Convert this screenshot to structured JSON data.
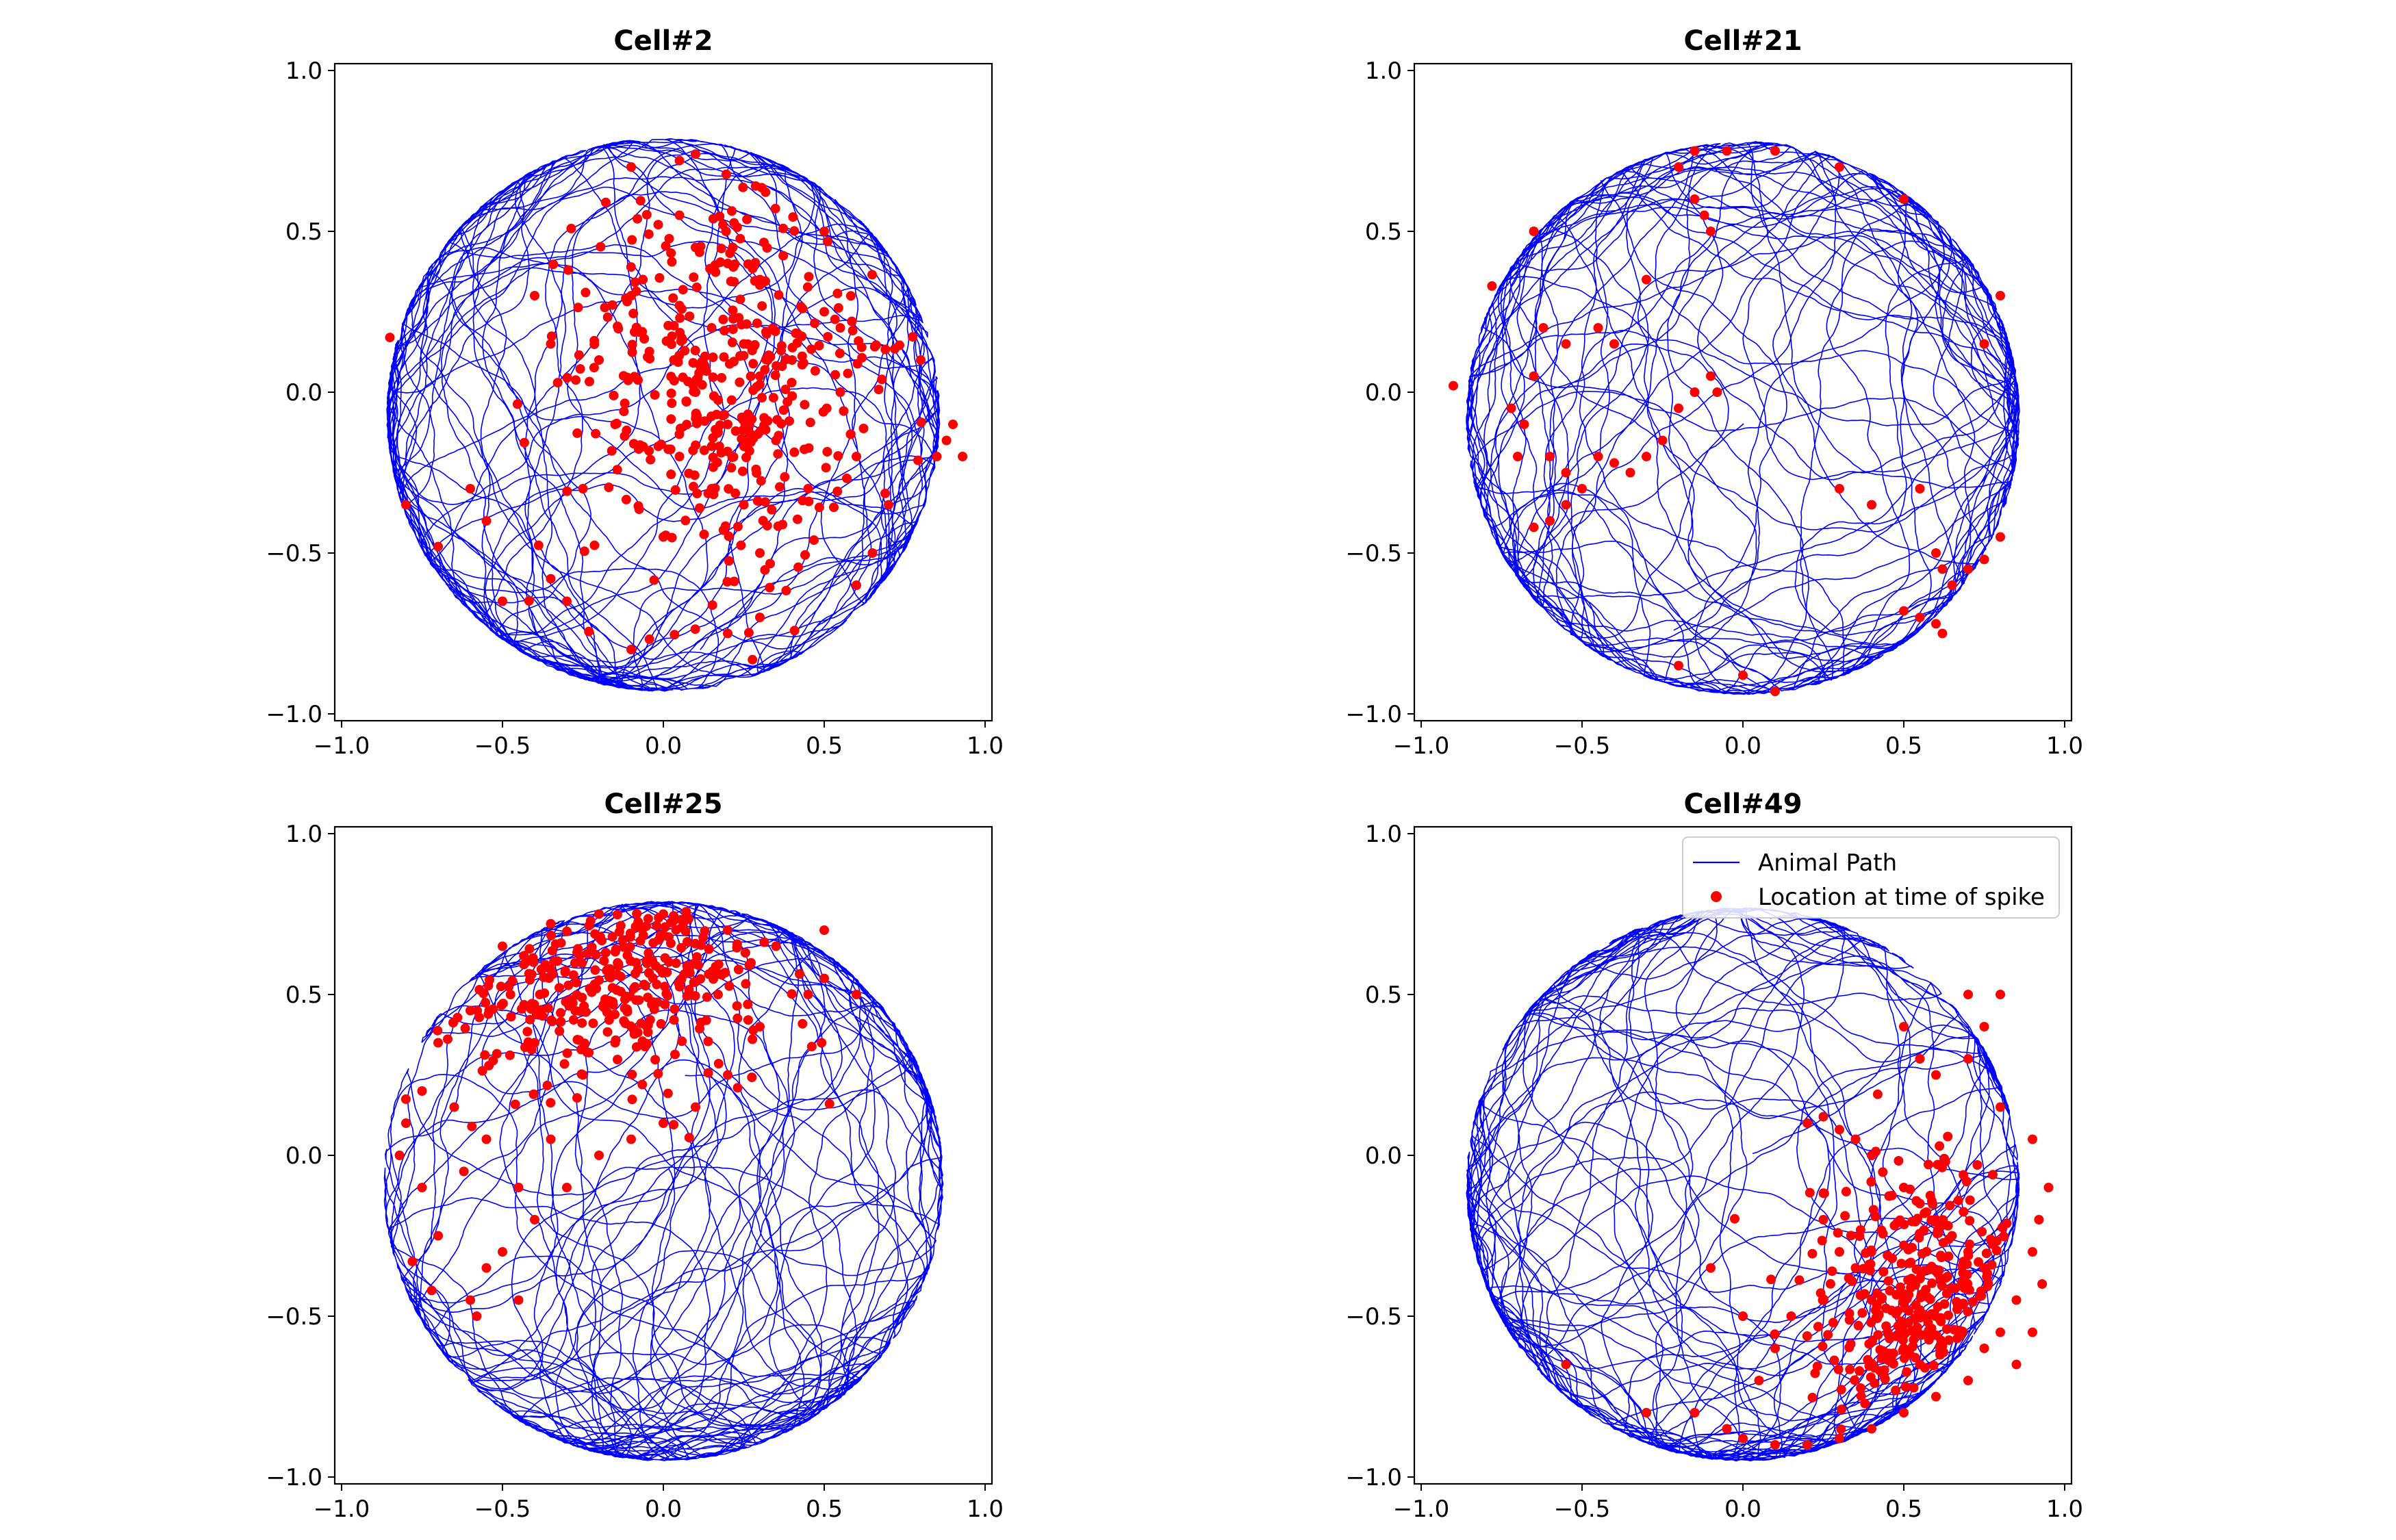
{
  "colors": {
    "path": "#0000ff",
    "spike": "#ff0000",
    "axes": "#000000",
    "background": "#ffffff"
  },
  "legend": {
    "location": "upper right",
    "entries": [
      {
        "label": "Animal Path",
        "marker": "line",
        "color": "#0000ff"
      },
      {
        "label": "Location at time of spike",
        "marker": "dot",
        "color": "#ff0000"
      }
    ]
  },
  "chart_data": [
    {
      "type": "scatter",
      "title": "Cell#2",
      "xlabel": "",
      "ylabel": "",
      "xlim": [
        -1.0,
        1.0
      ],
      "ylim": [
        -1.0,
        1.0
      ],
      "xticks": [
        "-1.0",
        "-0.5",
        "0.0",
        "0.5",
        "1.0"
      ],
      "yticks": [
        "-1.0",
        "-0.5",
        "0.0",
        "0.5",
        "1.0"
      ],
      "grid": false,
      "series": [
        {
          "name": "Animal Path",
          "kind": "line",
          "color": "#0000ff",
          "arena": {
            "cx": 0.0,
            "cy": -0.07,
            "r": 0.86
          }
        },
        {
          "name": "Location at time of spike",
          "kind": "points",
          "color": "#ff0000",
          "field": {
            "cx": 0.18,
            "cy": 0.02,
            "sx": 0.24,
            "sy": 0.3
          },
          "points": [
            [
              0.05,
              0.55
            ],
            [
              0.1,
              0.45
            ],
            [
              0.2,
              0.4
            ],
            [
              0.3,
              0.35
            ],
            [
              0.15,
              0.2
            ],
            [
              0.25,
              0.15
            ],
            [
              0.3,
              0.05
            ],
            [
              0.1,
              0.0
            ],
            [
              0.2,
              -0.1
            ],
            [
              0.35,
              -0.15
            ],
            [
              0.4,
              0.1
            ],
            [
              0.05,
              -0.2
            ],
            [
              0.15,
              -0.3
            ],
            [
              0.25,
              -0.35
            ],
            [
              0.0,
              -0.45
            ],
            [
              0.3,
              -0.5
            ],
            [
              0.45,
              -0.3
            ],
            [
              0.5,
              0.25
            ],
            [
              0.55,
              0.0
            ],
            [
              0.6,
              -0.2
            ],
            [
              -0.1,
              0.3
            ],
            [
              -0.2,
              0.1
            ],
            [
              -0.15,
              -0.1
            ],
            [
              -0.25,
              -0.3
            ],
            [
              0.7,
              -0.35
            ],
            [
              0.85,
              -0.2
            ],
            [
              0.9,
              -0.1
            ],
            [
              -0.85,
              0.17
            ],
            [
              -0.8,
              -0.35
            ],
            [
              -0.7,
              -0.48
            ],
            [
              -0.6,
              -0.3
            ],
            [
              -0.5,
              -0.65
            ],
            [
              -0.35,
              -0.58
            ],
            [
              -0.3,
              -0.65
            ],
            [
              0.05,
              0.72
            ],
            [
              0.1,
              0.74
            ],
            [
              -0.1,
              0.7
            ],
            [
              0.5,
              0.5
            ],
            [
              0.55,
              0.2
            ],
            [
              -0.35,
              0.15
            ],
            [
              0.65,
              -0.5
            ],
            [
              0.6,
              -0.6
            ],
            [
              0.3,
              -0.7
            ],
            [
              0.2,
              -0.75
            ],
            [
              -0.1,
              -0.8
            ],
            [
              -0.4,
              0.3
            ],
            [
              -0.55,
              -0.4
            ],
            [
              0.8,
              0.1
            ],
            [
              0.88,
              -0.15
            ],
            [
              0.93,
              -0.2
            ]
          ]
        }
      ]
    },
    {
      "type": "scatter",
      "title": "Cell#21",
      "xlabel": "",
      "ylabel": "",
      "xlim": [
        -1.0,
        1.0
      ],
      "ylim": [
        -1.0,
        1.0
      ],
      "xticks": [
        "-1.0",
        "-0.5",
        "0.0",
        "0.5",
        "1.0"
      ],
      "yticks": [
        "-1.0",
        "-0.5",
        "0.0",
        "0.5",
        "1.0"
      ],
      "grid": false,
      "series": [
        {
          "name": "Animal Path",
          "kind": "line",
          "color": "#0000ff",
          "arena": {
            "cx": 0.0,
            "cy": -0.08,
            "r": 0.86
          }
        },
        {
          "name": "Location at time of spike",
          "kind": "points",
          "color": "#ff0000",
          "points": [
            [
              -0.65,
              0.05
            ],
            [
              -0.68,
              -0.1
            ],
            [
              -0.6,
              -0.2
            ],
            [
              -0.55,
              -0.25
            ],
            [
              -0.45,
              -0.2
            ],
            [
              -0.4,
              -0.22
            ],
            [
              -0.35,
              -0.25
            ],
            [
              -0.3,
              -0.2
            ],
            [
              -0.25,
              -0.15
            ],
            [
              -0.2,
              -0.05
            ],
            [
              -0.15,
              0.0
            ],
            [
              -0.1,
              0.05
            ],
            [
              -0.08,
              0.0
            ],
            [
              -0.5,
              -0.3
            ],
            [
              -0.55,
              -0.35
            ],
            [
              -0.6,
              -0.4
            ],
            [
              -0.65,
              -0.42
            ],
            [
              -0.7,
              -0.2
            ],
            [
              -0.72,
              -0.05
            ],
            [
              -0.62,
              0.2
            ],
            [
              -0.55,
              0.15
            ],
            [
              -0.45,
              0.2
            ],
            [
              -0.4,
              0.15
            ],
            [
              -0.3,
              0.35
            ],
            [
              -0.15,
              0.6
            ],
            [
              -0.12,
              0.55
            ],
            [
              -0.1,
              0.5
            ],
            [
              -0.2,
              0.7
            ],
            [
              -0.15,
              0.75
            ],
            [
              -0.05,
              0.75
            ],
            [
              0.1,
              0.75
            ],
            [
              0.3,
              0.7
            ],
            [
              0.5,
              0.6
            ],
            [
              -0.65,
              0.5
            ],
            [
              -0.78,
              0.33
            ],
            [
              -0.9,
              0.02
            ],
            [
              0.55,
              -0.3
            ],
            [
              0.6,
              -0.5
            ],
            [
              0.62,
              -0.55
            ],
            [
              0.65,
              -0.6
            ],
            [
              0.7,
              -0.55
            ],
            [
              0.75,
              -0.52
            ],
            [
              0.8,
              -0.45
            ],
            [
              0.55,
              -0.7
            ],
            [
              0.6,
              -0.72
            ],
            [
              0.62,
              -0.75
            ],
            [
              0.5,
              -0.68
            ],
            [
              0.0,
              -0.88
            ],
            [
              0.1,
              -0.93
            ],
            [
              -0.2,
              -0.85
            ],
            [
              0.8,
              0.3
            ],
            [
              0.75,
              0.15
            ],
            [
              0.4,
              -0.35
            ],
            [
              0.3,
              -0.3
            ]
          ]
        }
      ]
    },
    {
      "type": "scatter",
      "title": "Cell#25",
      "xlabel": "",
      "ylabel": "",
      "xlim": [
        -1.0,
        1.0
      ],
      "ylim": [
        -1.0,
        1.0
      ],
      "xticks": [
        "-1.0",
        "-0.5",
        "0.0",
        "0.5",
        "1.0"
      ],
      "yticks": [
        "-1.0",
        "-0.5",
        "0.0",
        "0.5",
        "1.0"
      ],
      "grid": false,
      "series": [
        {
          "name": "Animal Path",
          "kind": "line",
          "color": "#0000ff",
          "arena": {
            "cx": 0.0,
            "cy": -0.08,
            "r": 0.87
          }
        },
        {
          "name": "Location at time of spike",
          "kind": "points",
          "color": "#ff0000",
          "field": {
            "cx": -0.2,
            "cy": 0.55,
            "sx": 0.28,
            "sy": 0.16
          },
          "points": [
            [
              -0.5,
              0.65
            ],
            [
              -0.35,
              0.72
            ],
            [
              -0.2,
              0.75
            ],
            [
              0.0,
              0.75
            ],
            [
              0.2,
              0.7
            ],
            [
              0.35,
              0.65
            ],
            [
              0.5,
              0.7
            ],
            [
              -0.6,
              0.45
            ],
            [
              -0.7,
              0.35
            ],
            [
              -0.75,
              0.2
            ],
            [
              -0.8,
              0.1
            ],
            [
              -0.82,
              0.0
            ],
            [
              -0.75,
              -0.1
            ],
            [
              -0.7,
              -0.25
            ],
            [
              -0.78,
              -0.33
            ],
            [
              -0.72,
              -0.42
            ],
            [
              -0.6,
              -0.45
            ],
            [
              -0.55,
              -0.35
            ],
            [
              -0.5,
              -0.3
            ],
            [
              -0.45,
              -0.45
            ],
            [
              -0.58,
              -0.5
            ],
            [
              -0.4,
              -0.2
            ],
            [
              -0.3,
              -0.1
            ],
            [
              -0.2,
              0.0
            ],
            [
              -0.1,
              0.05
            ],
            [
              0.0,
              0.1
            ],
            [
              0.1,
              0.15
            ],
            [
              0.2,
              0.25
            ],
            [
              0.3,
              0.4
            ],
            [
              0.45,
              0.5
            ],
            [
              0.6,
              0.5
            ],
            [
              -0.65,
              0.15
            ],
            [
              -0.62,
              -0.05
            ],
            [
              -0.55,
              0.05
            ],
            [
              -0.45,
              -0.1
            ],
            [
              -0.35,
              0.05
            ],
            [
              -0.25,
              0.25
            ],
            [
              -0.15,
              0.35
            ],
            [
              -0.4,
              0.35
            ],
            [
              0.5,
              0.55
            ]
          ]
        }
      ]
    },
    {
      "type": "scatter",
      "title": "Cell#49",
      "xlabel": "",
      "ylabel": "",
      "xlim": [
        -1.0,
        1.0
      ],
      "ylim": [
        -1.0,
        1.0
      ],
      "xticks": [
        "-1.0",
        "-0.5",
        "0.0",
        "0.5",
        "1.0"
      ],
      "yticks": [
        "-1.0",
        "-0.5",
        "0.0",
        "0.5",
        "1.0"
      ],
      "grid": false,
      "legend": true,
      "series": [
        {
          "name": "Animal Path",
          "kind": "line",
          "color": "#0000ff",
          "arena": {
            "cx": 0.0,
            "cy": -0.09,
            "r": 0.86
          }
        },
        {
          "name": "Location at time of spike",
          "kind": "points",
          "color": "#ff0000",
          "field": {
            "cx": 0.6,
            "cy": -0.45,
            "sx": 0.2,
            "sy": 0.22
          },
          "points": [
            [
              0.8,
              0.15
            ],
            [
              0.9,
              0.05
            ],
            [
              0.95,
              -0.1
            ],
            [
              0.92,
              -0.2
            ],
            [
              0.9,
              -0.3
            ],
            [
              0.85,
              -0.45
            ],
            [
              0.8,
              -0.55
            ],
            [
              0.75,
              -0.6
            ],
            [
              0.7,
              -0.7
            ],
            [
              0.6,
              -0.75
            ],
            [
              0.5,
              -0.8
            ],
            [
              0.4,
              -0.85
            ],
            [
              0.3,
              -0.88
            ],
            [
              0.2,
              -0.9
            ],
            [
              0.1,
              -0.9
            ],
            [
              0.0,
              -0.88
            ],
            [
              -0.05,
              -0.85
            ],
            [
              0.2,
              0.1
            ],
            [
              0.25,
              0.12
            ],
            [
              0.3,
              0.08
            ],
            [
              0.35,
              0.05
            ],
            [
              0.4,
              0.0
            ],
            [
              0.5,
              -0.1
            ],
            [
              0.55,
              -0.15
            ],
            [
              0.6,
              -0.2
            ],
            [
              0.65,
              -0.25
            ],
            [
              0.7,
              -0.3
            ],
            [
              0.75,
              -0.35
            ],
            [
              0.25,
              -0.2
            ],
            [
              0.3,
              -0.3
            ],
            [
              0.35,
              -0.35
            ],
            [
              0.4,
              -0.45
            ],
            [
              0.45,
              -0.55
            ],
            [
              0.5,
              -0.6
            ],
            [
              0.55,
              -0.65
            ],
            [
              0.15,
              -0.5
            ],
            [
              0.1,
              -0.6
            ],
            [
              0.05,
              -0.7
            ],
            [
              0.5,
              0.4
            ],
            [
              0.55,
              0.3
            ],
            [
              0.6,
              0.25
            ],
            [
              0.7,
              0.3
            ],
            [
              0.75,
              0.4
            ],
            [
              0.8,
              0.5
            ],
            [
              0.7,
              0.5
            ],
            [
              -0.55,
              -0.65
            ],
            [
              -0.3,
              -0.8
            ],
            [
              -0.15,
              -0.8
            ],
            [
              -0.1,
              -0.35
            ],
            [
              0.0,
              -0.5
            ],
            [
              0.85,
              -0.65
            ],
            [
              0.9,
              -0.55
            ],
            [
              0.93,
              -0.4
            ]
          ]
        }
      ]
    }
  ]
}
